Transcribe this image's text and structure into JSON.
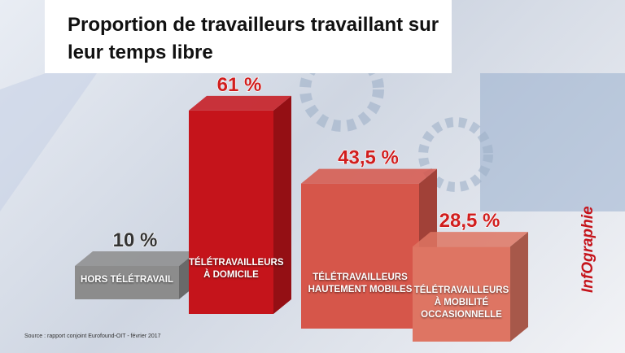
{
  "chart_data": {
    "type": "bar",
    "title": "Proportion de travailleurs travaillant sur leur temps libre",
    "categories": [
      "HORS TÉLÉTRAVAIL",
      "TÉLÉTRAVAILLEURS À DOMICILE",
      "TÉLÉTRAVAILLEURS HAUTEMENT MOBILES",
      "TÉLÉTRAVAILLEURS À MOBILITÉ OCCASIONNELLE"
    ],
    "values": [
      10,
      61,
      43.5,
      28.5
    ],
    "value_labels": [
      "10 %",
      "61 %",
      "43,5 %",
      "28,5 %"
    ],
    "colors": [
      "#8c8c8c",
      "#c5141b",
      "#d6564a",
      "#de7563"
    ],
    "source": "Source : rapport conjoint Eurofound-OIT - février 2017",
    "logo": "InfOgraphie"
  }
}
